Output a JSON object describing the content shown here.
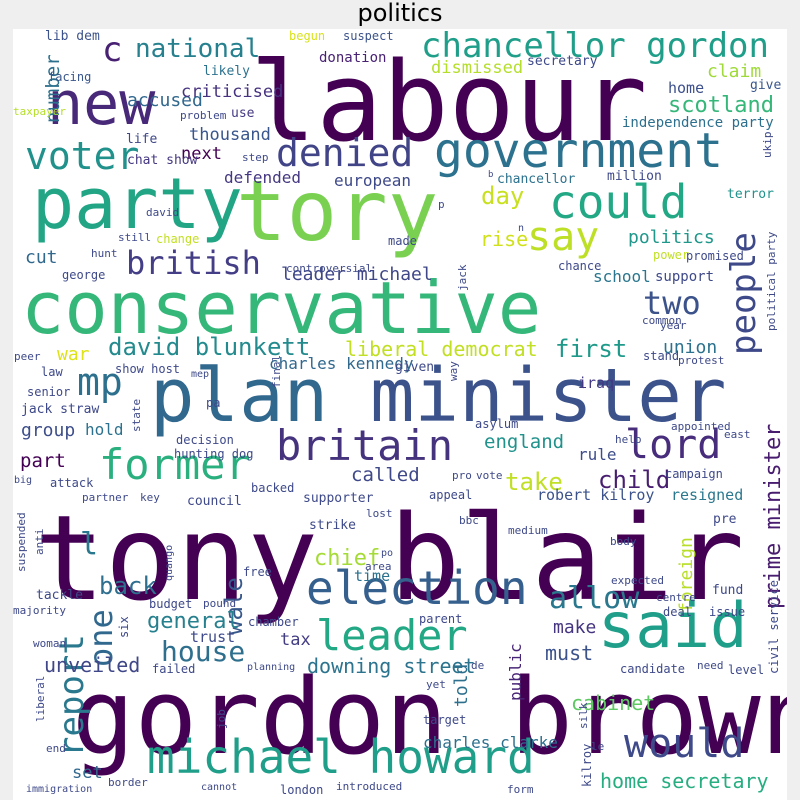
{
  "title": "politics",
  "words": [
    {
      "text": "tony blair",
      "color": "#440154"
    },
    {
      "text": "gordon brown",
      "color": "#440154"
    },
    {
      "text": "labour",
      "color": "#440154"
    },
    {
      "text": "conservative",
      "color": "#35b779"
    },
    {
      "text": "minister",
      "color": "#3b528b"
    },
    {
      "text": "plan",
      "color": "#31688e"
    },
    {
      "text": "tory",
      "color": "#7ad151"
    },
    {
      "text": "new",
      "color": "#482878"
    },
    {
      "text": "party",
      "color": "#21a585"
    },
    {
      "text": "said",
      "color": "#1f9e89"
    },
    {
      "text": "government",
      "color": "#2c728e"
    },
    {
      "text": "michael howard",
      "color": "#1f9e89"
    },
    {
      "text": "election",
      "color": "#355f8d"
    },
    {
      "text": "britain",
      "color": "#46337e"
    },
    {
      "text": "former",
      "color": "#2ab07f"
    },
    {
      "text": "leader",
      "color": "#22a884"
    },
    {
      "text": "would",
      "color": "#3e4a89"
    },
    {
      "text": "could",
      "color": "#22a884"
    },
    {
      "text": "say",
      "color": "#bddf26"
    },
    {
      "text": "voter",
      "color": "#21918c"
    },
    {
      "text": "denied",
      "color": "#414487"
    },
    {
      "text": "chancellor gordon",
      "color": "#1f9e89"
    },
    {
      "text": "lord",
      "color": "#472d7b"
    },
    {
      "text": "mp",
      "color": "#2d708e"
    },
    {
      "text": "people",
      "color": "#3e4989"
    },
    {
      "text": "british",
      "color": "#433e85"
    },
    {
      "text": "report",
      "color": "#2a788e"
    },
    {
      "text": "two",
      "color": "#3b528b"
    },
    {
      "text": "one",
      "color": "#31688e"
    },
    {
      "text": "allow",
      "color": "#2a788e"
    },
    {
      "text": "house",
      "color": "#2e6f8e"
    },
    {
      "text": "prime minister",
      "color": "#481c6e"
    },
    {
      "text": "david blunkett",
      "color": "#238a8d"
    },
    {
      "text": "national",
      "color": "#27808e"
    },
    {
      "text": "c",
      "color": "#482173"
    },
    {
      "text": "liberal democrat",
      "color": "#c2df23"
    },
    {
      "text": "first",
      "color": "#1f9a8a"
    },
    {
      "text": "day",
      "color": "#c8e020"
    },
    {
      "text": "home secretary",
      "color": "#26ad81"
    },
    {
      "text": "scotland",
      "color": "#35b779"
    },
    {
      "text": "back",
      "color": "#2e6e8e"
    },
    {
      "text": "take",
      "color": "#c0df25"
    },
    {
      "text": "child",
      "color": "#481f70"
    },
    {
      "text": "wale",
      "color": "#38588c"
    },
    {
      "text": "chief",
      "color": "#a5db36"
    },
    {
      "text": "general",
      "color": "#27808e"
    },
    {
      "text": "downing street",
      "color": "#2c738e"
    },
    {
      "text": "unveiled",
      "color": "#3f4788"
    },
    {
      "text": "cabinet",
      "color": "#5ec962"
    },
    {
      "text": "must",
      "color": "#3b528b"
    },
    {
      "text": "accused",
      "color": "#31688e"
    },
    {
      "text": "criticised",
      "color": "#46327e"
    },
    {
      "text": "number",
      "color": "#2d708e"
    },
    {
      "text": "dismissed",
      "color": "#b5de2b"
    },
    {
      "text": "claim",
      "color": "#9fda3a"
    },
    {
      "text": "politics",
      "color": "#1f978b"
    },
    {
      "text": "next",
      "color": "#440154"
    },
    {
      "text": "thousand",
      "color": "#39568c"
    },
    {
      "text": "defended",
      "color": "#453781"
    },
    {
      "text": "european",
      "color": "#3e4989"
    },
    {
      "text": "leader michael",
      "color": "#3f4788"
    },
    {
      "text": "rise",
      "color": "#d0e11c"
    },
    {
      "text": "school",
      "color": "#2a768e"
    },
    {
      "text": "war",
      "color": "#dde318"
    },
    {
      "text": "charles kennedy",
      "color": "#31688e"
    },
    {
      "text": "union",
      "color": "#2c728e"
    },
    {
      "text": "iraq",
      "color": "#443983"
    },
    {
      "text": "england",
      "color": "#20928c"
    },
    {
      "text": "rule",
      "color": "#3e4c8a"
    },
    {
      "text": "called",
      "color": "#3f4889"
    },
    {
      "text": "part",
      "color": "#440154"
    },
    {
      "text": "group",
      "color": "#3d4e8a"
    },
    {
      "text": "hold",
      "color": "#2c728e"
    },
    {
      "text": "independence party",
      "color": "#2d708e"
    },
    {
      "text": "home",
      "color": "#3c4f8a"
    },
    {
      "text": "cut",
      "color": "#31688e"
    },
    {
      "text": "robert kilroy",
      "color": "#3b528b"
    },
    {
      "text": "resigned",
      "color": "#2a788e"
    },
    {
      "text": "foreign",
      "color": "#b8de29"
    },
    {
      "text": "make",
      "color": "#453581"
    },
    {
      "text": "told",
      "color": "#2d708e"
    },
    {
      "text": "public",
      "color": "#482677"
    },
    {
      "text": "time",
      "color": "#2c728e"
    },
    {
      "text": "tax",
      "color": "#433d84"
    },
    {
      "text": "trust",
      "color": "#3e4a89"
    },
    {
      "text": "set",
      "color": "#31688e"
    },
    {
      "text": "l",
      "color": "#2a788e"
    },
    {
      "text": "charles clarke",
      "color": "#2d708e"
    },
    {
      "text": "secretary",
      "color": "#3e4989"
    },
    {
      "text": "donation",
      "color": "#482173"
    },
    {
      "text": "lib dem",
      "color": "#3b528b"
    },
    {
      "text": "begun",
      "color": "#d8e219"
    },
    {
      "text": "suspect",
      "color": "#3b528b"
    },
    {
      "text": "likely",
      "color": "#2c728e"
    },
    {
      "text": "facing",
      "color": "#39568c"
    },
    {
      "text": "problem",
      "color": "#3e4989"
    },
    {
      "text": "use",
      "color": "#443983"
    },
    {
      "text": "life",
      "color": "#3f4788"
    },
    {
      "text": "taxpayer",
      "color": "#b5de2b"
    },
    {
      "text": "step",
      "color": "#3e4989"
    },
    {
      "text": "chat show",
      "color": "#453781"
    },
    {
      "text": "chancellor",
      "color": "#2c728e"
    },
    {
      "text": "million",
      "color": "#3e4989"
    },
    {
      "text": "give",
      "color": "#39568c"
    },
    {
      "text": "ukip",
      "color": "#3e4989"
    },
    {
      "text": "terror",
      "color": "#20928c"
    },
    {
      "text": "david",
      "color": "#3e4989"
    },
    {
      "text": "hunt",
      "color": "#3e4989"
    },
    {
      "text": "still",
      "color": "#3e4989"
    },
    {
      "text": "change",
      "color": "#c2df23"
    },
    {
      "text": "made",
      "color": "#3e4989"
    },
    {
      "text": "controversial",
      "color": "#3e4989"
    },
    {
      "text": "chance",
      "color": "#3e4989"
    },
    {
      "text": "power",
      "color": "#c0df25"
    },
    {
      "text": "promised",
      "color": "#3e4989"
    },
    {
      "text": "support",
      "color": "#3e4989"
    },
    {
      "text": "george",
      "color": "#3e4989"
    },
    {
      "text": "jack",
      "color": "#3e4989"
    },
    {
      "text": "common",
      "color": "#3e4989"
    },
    {
      "text": "year",
      "color": "#3e4989"
    },
    {
      "text": "political party",
      "color": "#3e4989"
    },
    {
      "text": "stand",
      "color": "#3e4989"
    },
    {
      "text": "protest",
      "color": "#3e4989"
    },
    {
      "text": "peer",
      "color": "#3e4989"
    },
    {
      "text": "law",
      "color": "#3e4989"
    },
    {
      "text": "senior",
      "color": "#3e4989"
    },
    {
      "text": "jack straw",
      "color": "#3e4989"
    },
    {
      "text": "show host",
      "color": "#3e4989"
    },
    {
      "text": "mep",
      "color": "#3e4989"
    },
    {
      "text": "given",
      "color": "#3e4989"
    },
    {
      "text": "way",
      "color": "#3e4989"
    },
    {
      "text": "final",
      "color": "#3e4989"
    },
    {
      "text": "state",
      "color": "#3e4989"
    },
    {
      "text": "pa",
      "color": "#3e4989"
    },
    {
      "text": "asylum",
      "color": "#3e4989"
    },
    {
      "text": "appointed",
      "color": "#3e4989"
    },
    {
      "text": "east",
      "color": "#3e4989"
    },
    {
      "text": "help",
      "color": "#3e4989"
    },
    {
      "text": "decision",
      "color": "#3e4989"
    },
    {
      "text": "hunting dog",
      "color": "#3e4989"
    },
    {
      "text": "pro",
      "color": "#3e4989"
    },
    {
      "text": "vote",
      "color": "#3e4989"
    },
    {
      "text": "campaign",
      "color": "#3e4989"
    },
    {
      "text": "big",
      "color": "#3e4989"
    },
    {
      "text": "attack",
      "color": "#3e4989"
    },
    {
      "text": "partner",
      "color": "#3e4989"
    },
    {
      "text": "key",
      "color": "#3e4989"
    },
    {
      "text": "council",
      "color": "#3e4989"
    },
    {
      "text": "backed",
      "color": "#3e4989"
    },
    {
      "text": "supporter",
      "color": "#3e4989"
    },
    {
      "text": "appeal",
      "color": "#3e4989"
    },
    {
      "text": "lost",
      "color": "#3e4989"
    },
    {
      "text": "suspended",
      "color": "#3e4989"
    },
    {
      "text": "strike",
      "color": "#3e4989"
    },
    {
      "text": "bbc",
      "color": "#3e4989"
    },
    {
      "text": "medium",
      "color": "#3e4989"
    },
    {
      "text": "body",
      "color": "#3e4989"
    },
    {
      "text": "pre",
      "color": "#3e4989"
    },
    {
      "text": "anti",
      "color": "#3e4989"
    },
    {
      "text": "quango",
      "color": "#3e4989"
    },
    {
      "text": "po",
      "color": "#3e4989"
    },
    {
      "text": "area",
      "color": "#3e4989"
    },
    {
      "text": "free",
      "color": "#3e4989"
    },
    {
      "text": "tackle",
      "color": "#3e4989"
    },
    {
      "text": "majority",
      "color": "#3e4989"
    },
    {
      "text": "budget",
      "color": "#3e4989"
    },
    {
      "text": "pound",
      "color": "#3e4989"
    },
    {
      "text": "chamber",
      "color": "#3e4989"
    },
    {
      "text": "parent",
      "color": "#3e4989"
    },
    {
      "text": "expected",
      "color": "#3e4989"
    },
    {
      "text": "fund",
      "color": "#3e4989"
    },
    {
      "text": "centre",
      "color": "#3e4989"
    },
    {
      "text": "deal",
      "color": "#3e4989"
    },
    {
      "text": "issue",
      "color": "#3e4989"
    },
    {
      "text": "civil service",
      "color": "#3e4989"
    },
    {
      "text": "woman",
      "color": "#3e4989"
    },
    {
      "text": "six",
      "color": "#3e4989"
    },
    {
      "text": "failed",
      "color": "#3e4989"
    },
    {
      "text": "planning",
      "color": "#3e4989"
    },
    {
      "text": "de",
      "color": "#3e4989"
    },
    {
      "text": "candidate",
      "color": "#3e4989"
    },
    {
      "text": "need",
      "color": "#3e4989"
    },
    {
      "text": "level",
      "color": "#3e4989"
    },
    {
      "text": "liberal",
      "color": "#3e4989"
    },
    {
      "text": "job",
      "color": "#3e4989"
    },
    {
      "text": "yet",
      "color": "#3e4989"
    },
    {
      "text": "target",
      "color": "#3e4989"
    },
    {
      "text": "end",
      "color": "#3e4989"
    },
    {
      "text": "silk",
      "color": "#3e4989"
    },
    {
      "text": "le",
      "color": "#3e4989"
    },
    {
      "text": "kilroy",
      "color": "#3e4989"
    },
    {
      "text": "border",
      "color": "#3e4989"
    },
    {
      "text": "cannot",
      "color": "#3e4989"
    },
    {
      "text": "london",
      "color": "#3e4989"
    },
    {
      "text": "introduced",
      "color": "#3e4989"
    },
    {
      "text": "form",
      "color": "#3e4989"
    },
    {
      "text": "immigration",
      "color": "#3e4989"
    },
    {
      "text": "b",
      "color": "#3e4989"
    },
    {
      "text": "p",
      "color": "#3e4989"
    },
    {
      "text": "n",
      "color": "#3e4989"
    }
  ]
}
